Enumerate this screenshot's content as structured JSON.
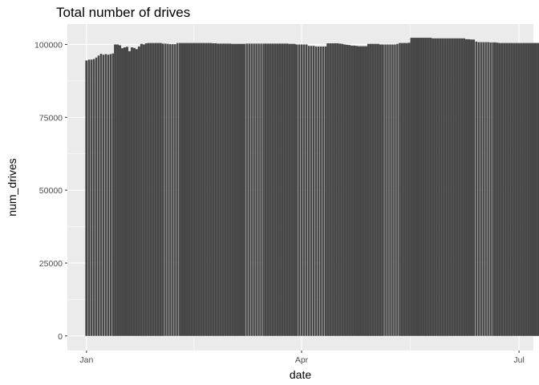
{
  "chart_data": {
    "type": "bar",
    "title": "Total number of drives",
    "xlabel": "date",
    "ylabel": "num_drives",
    "x_start": "2019-01-01",
    "x_end": "2019-06-30",
    "xlim": [
      "2018-12-24",
      "2019-07-07"
    ],
    "ylim": [
      -5000,
      107000
    ],
    "y_ticks": [
      0,
      25000,
      50000,
      75000,
      100000
    ],
    "y_tick_labels": [
      "0",
      "25000",
      "50000",
      "75000",
      "100000"
    ],
    "x_ticks": [
      "2019-01-01",
      "2019-04-01",
      "2019-07-01"
    ],
    "x_tick_labels": [
      "Jan",
      "Apr",
      "Jul"
    ],
    "grid": true,
    "bar_color": "#474747",
    "panel_color": "#ebebeb",
    "grid_major_color": "#ffffff",
    "gap_dates": [
      "2019-01-02",
      "2019-01-03",
      "2019-01-04",
      "2019-01-05",
      "2019-01-06",
      "2019-01-07",
      "2019-01-08",
      "2019-01-09",
      "2019-01-10",
      "2019-01-11",
      "2019-01-12",
      "2019-02-03",
      "2019-02-04",
      "2019-02-05",
      "2019-02-06",
      "2019-02-07",
      "2019-02-08",
      "2019-02-09",
      "2019-03-09",
      "2019-03-10",
      "2019-03-11",
      "2019-03-12",
      "2019-03-13",
      "2019-03-14",
      "2019-03-15",
      "2019-03-16",
      "2019-03-31",
      "2019-04-01",
      "2019-04-02",
      "2019-04-03",
      "2019-04-04",
      "2019-04-05",
      "2019-04-06",
      "2019-04-07",
      "2019-04-08",
      "2019-04-09",
      "2019-04-10",
      "2019-04-11",
      "2019-05-06",
      "2019-05-07",
      "2019-05-08",
      "2019-05-09",
      "2019-05-10",
      "2019-05-11",
      "2019-05-12",
      "2019-06-13",
      "2019-06-14",
      "2019-06-15",
      "2019-06-16",
      "2019-06-17",
      "2019-06-18",
      "2019-06-19",
      "2019-06-20"
    ],
    "values": [
      94500,
      94800,
      94800,
      95000,
      95500,
      96200,
      96800,
      96500,
      96700,
      96500,
      96700,
      96900,
      100000,
      100000,
      99700,
      98700,
      99000,
      99200,
      97700,
      99000,
      98800,
      98400,
      99300,
      100200,
      100000,
      100400,
      100500,
      100500,
      100500,
      100500,
      100500,
      100500,
      100300,
      100300,
      100200,
      100100,
      100100,
      100100,
      100500,
      100500,
      100500,
      100500,
      100500,
      100500,
      100500,
      100500,
      100500,
      100500,
      100500,
      100500,
      100500,
      100500,
      100500,
      100400,
      100400,
      100300,
      100300,
      100300,
      100300,
      100300,
      100300,
      100200,
      100200,
      100200,
      100200,
      100200,
      100200,
      100300,
      100300,
      100300,
      100300,
      100300,
      100300,
      100300,
      100300,
      100300,
      100300,
      100300,
      100300,
      100300,
      100300,
      100300,
      100300,
      100300,
      100300,
      100200,
      100200,
      100200,
      100000,
      100000,
      100000,
      100000,
      100000,
      99500,
      99500,
      99500,
      99300,
      99300,
      99300,
      99300,
      99300,
      100400,
      100400,
      100400,
      100400,
      100400,
      100300,
      100200,
      100000,
      99900,
      99800,
      99600,
      99600,
      99500,
      99400,
      99400,
      99400,
      99400,
      100200,
      100200,
      100200,
      100200,
      100200,
      100000,
      100000,
      100000,
      100000,
      100000,
      100000,
      100000,
      100200,
      100500,
      100500,
      100500,
      100500,
      100600,
      102300,
      102300,
      102300,
      102300,
      102300,
      102300,
      102300,
      102300,
      102300,
      102100,
      102100,
      102100,
      102100,
      102100,
      102100,
      102100,
      102100,
      102100,
      102100,
      102100,
      102100,
      102100,
      102100,
      101800,
      101800,
      101700,
      101700,
      101000,
      100800,
      100800,
      100800,
      100800,
      100800,
      100700,
      100700,
      100700,
      100600,
      100500,
      100500,
      100500,
      100500,
      100500,
      100500,
      100500,
      100500,
      100500,
      100500,
      100500,
      100500,
      100500,
      100500,
      100500,
      100500,
      100500
    ]
  }
}
